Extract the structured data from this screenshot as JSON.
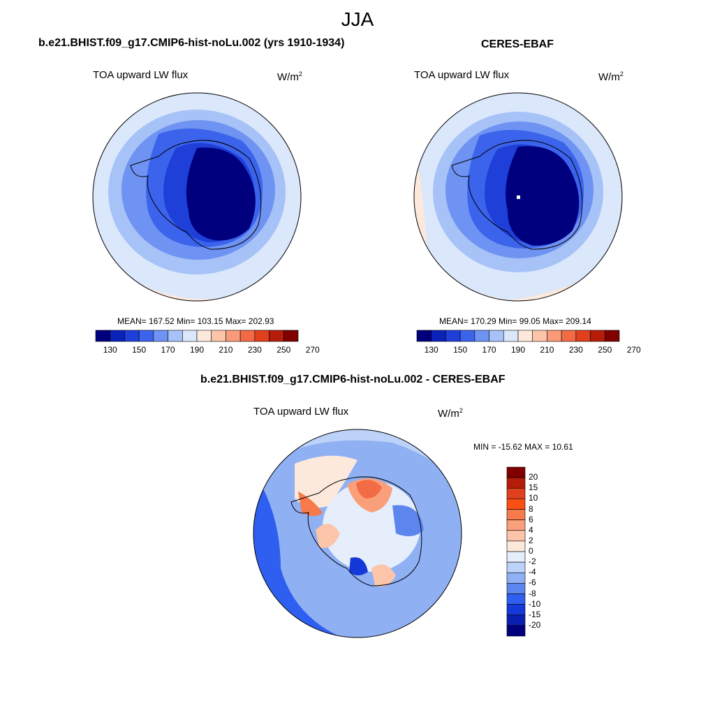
{
  "figure": {
    "season": "JJA"
  },
  "panels": [
    {
      "title": "b.e21.BHIST.f09_g17.CMIP6-hist-noLu.002 (yrs 1910-1934)",
      "variable": "TOA upward LW flux",
      "units": "W/m",
      "units_sup": "2",
      "stats": "MEAN= 167.52  Min= 103.15  Max= 202.93"
    },
    {
      "title": "CERES-EBAF",
      "variable": "TOA upward LW flux",
      "units": "W/m",
      "units_sup": "2",
      "stats": "MEAN= 170.29  Min=  99.05  Max= 209.14"
    },
    {
      "title": "b.e21.BHIST.f09_g17.CMIP6-hist-noLu.002 - CERES-EBAF",
      "variable": "TOA upward LW flux",
      "units": "W/m",
      "units_sup": "2",
      "stats": "MIN = -15.62 MAX =  10.61"
    }
  ],
  "colorbars": {
    "absolute": {
      "labels": [
        "130",
        "150",
        "170",
        "190",
        "210",
        "230",
        "250",
        "270"
      ],
      "colors": [
        "#00007f",
        "#0a22b8",
        "#1e3fd8",
        "#3b63ec",
        "#6f93f2",
        "#a6c2f7",
        "#dbe7fb",
        "#fde8dc",
        "#fcc4a8",
        "#f99a78",
        "#f26b45",
        "#e0401e",
        "#b51d0a",
        "#800000"
      ]
    },
    "difference": {
      "labels": [
        "20",
        "15",
        "10",
        "8",
        "6",
        "4",
        "2",
        "0",
        "-2",
        "-4",
        "-6",
        "-8",
        "-10",
        "-15",
        "-20"
      ],
      "colors": [
        "#800000",
        "#b51d0a",
        "#e0401e",
        "#fa4f12",
        "#f77a4c",
        "#f9a07a",
        "#fcc4a8",
        "#fde8dc",
        "#e6eefc",
        "#bcd2f8",
        "#8fb0f3",
        "#5c86ee",
        "#2f5ff0",
        "#1538d8",
        "#0a1fb0",
        "#00007f"
      ]
    }
  }
}
